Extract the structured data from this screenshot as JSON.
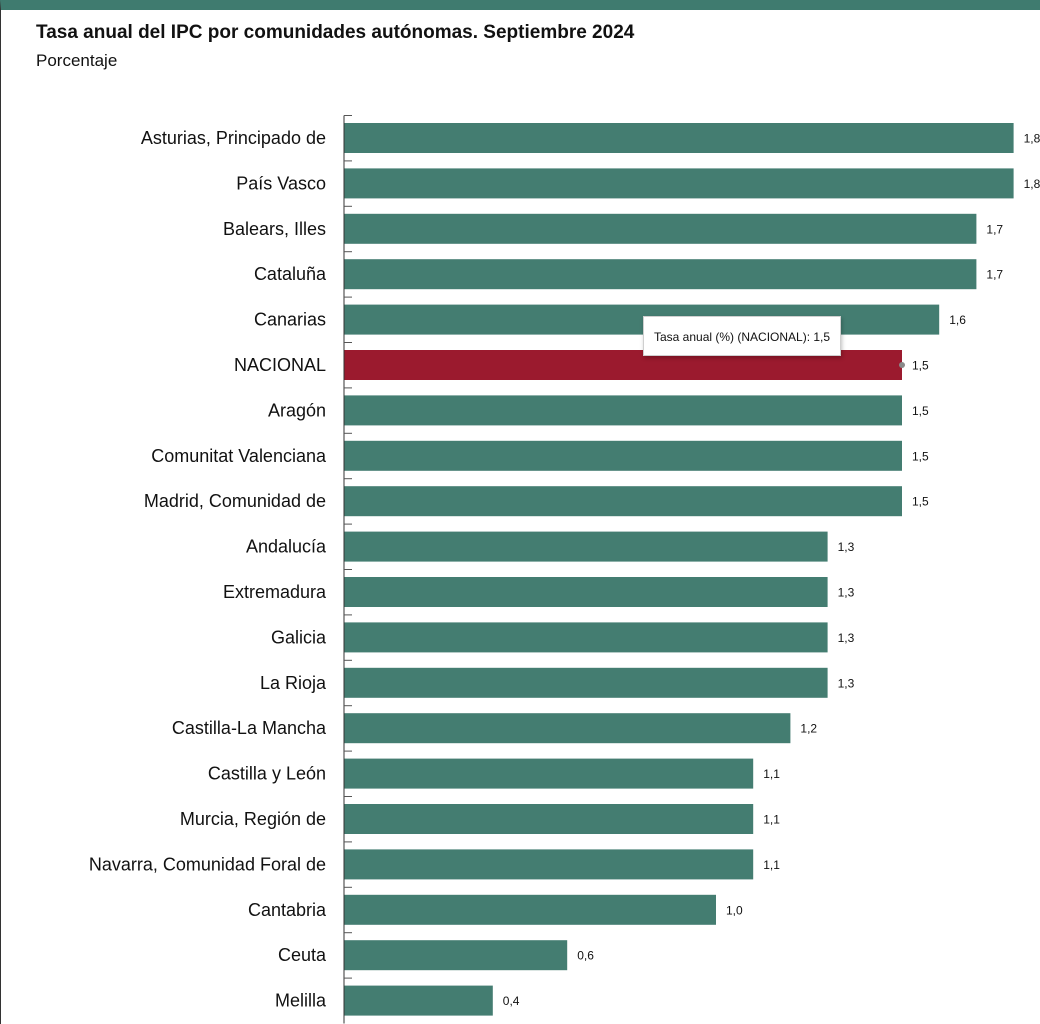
{
  "chart_data": {
    "type": "bar",
    "orientation": "horizontal",
    "title": "Tasa anual del IPC por comunidades autónomas. Septiembre 2024",
    "subtitle": "Porcentaje",
    "categories": [
      "Asturias, Principado de",
      "País Vasco",
      "Balears, Illes",
      "Cataluña",
      "Canarias",
      "NACIONAL",
      "Aragón",
      "Comunitat Valenciana",
      "Madrid, Comunidad de",
      "Andalucía",
      "Extremadura",
      "Galicia",
      "La Rioja",
      "Castilla-La Mancha",
      "Castilla y León",
      "Murcia, Región de",
      "Navarra, Comunidad Foral de",
      "Cantabria",
      "Ceuta",
      "Melilla"
    ],
    "values": [
      1.8,
      1.8,
      1.7,
      1.7,
      1.6,
      1.5,
      1.5,
      1.5,
      1.5,
      1.3,
      1.3,
      1.3,
      1.3,
      1.2,
      1.1,
      1.1,
      1.1,
      1.0,
      0.6,
      0.4
    ],
    "value_labels": [
      "1,8",
      "1,8",
      "1,7",
      "1,7",
      "1,6",
      "1,5",
      "1,5",
      "1,5",
      "1,5",
      "1,3",
      "1,3",
      "1,3",
      "1,3",
      "1,2",
      "1,1",
      "1,1",
      "1,1",
      "1,0",
      "0,6",
      "0,4"
    ],
    "highlight_category": "NACIONAL",
    "colors": {
      "bar": "#447d71",
      "highlight": "#9b1a2e",
      "accent": "#3f7b6f"
    },
    "tooltip": "Tasa anual (%) (NACIONAL): 1,5",
    "grid": false,
    "legend": "none"
  }
}
